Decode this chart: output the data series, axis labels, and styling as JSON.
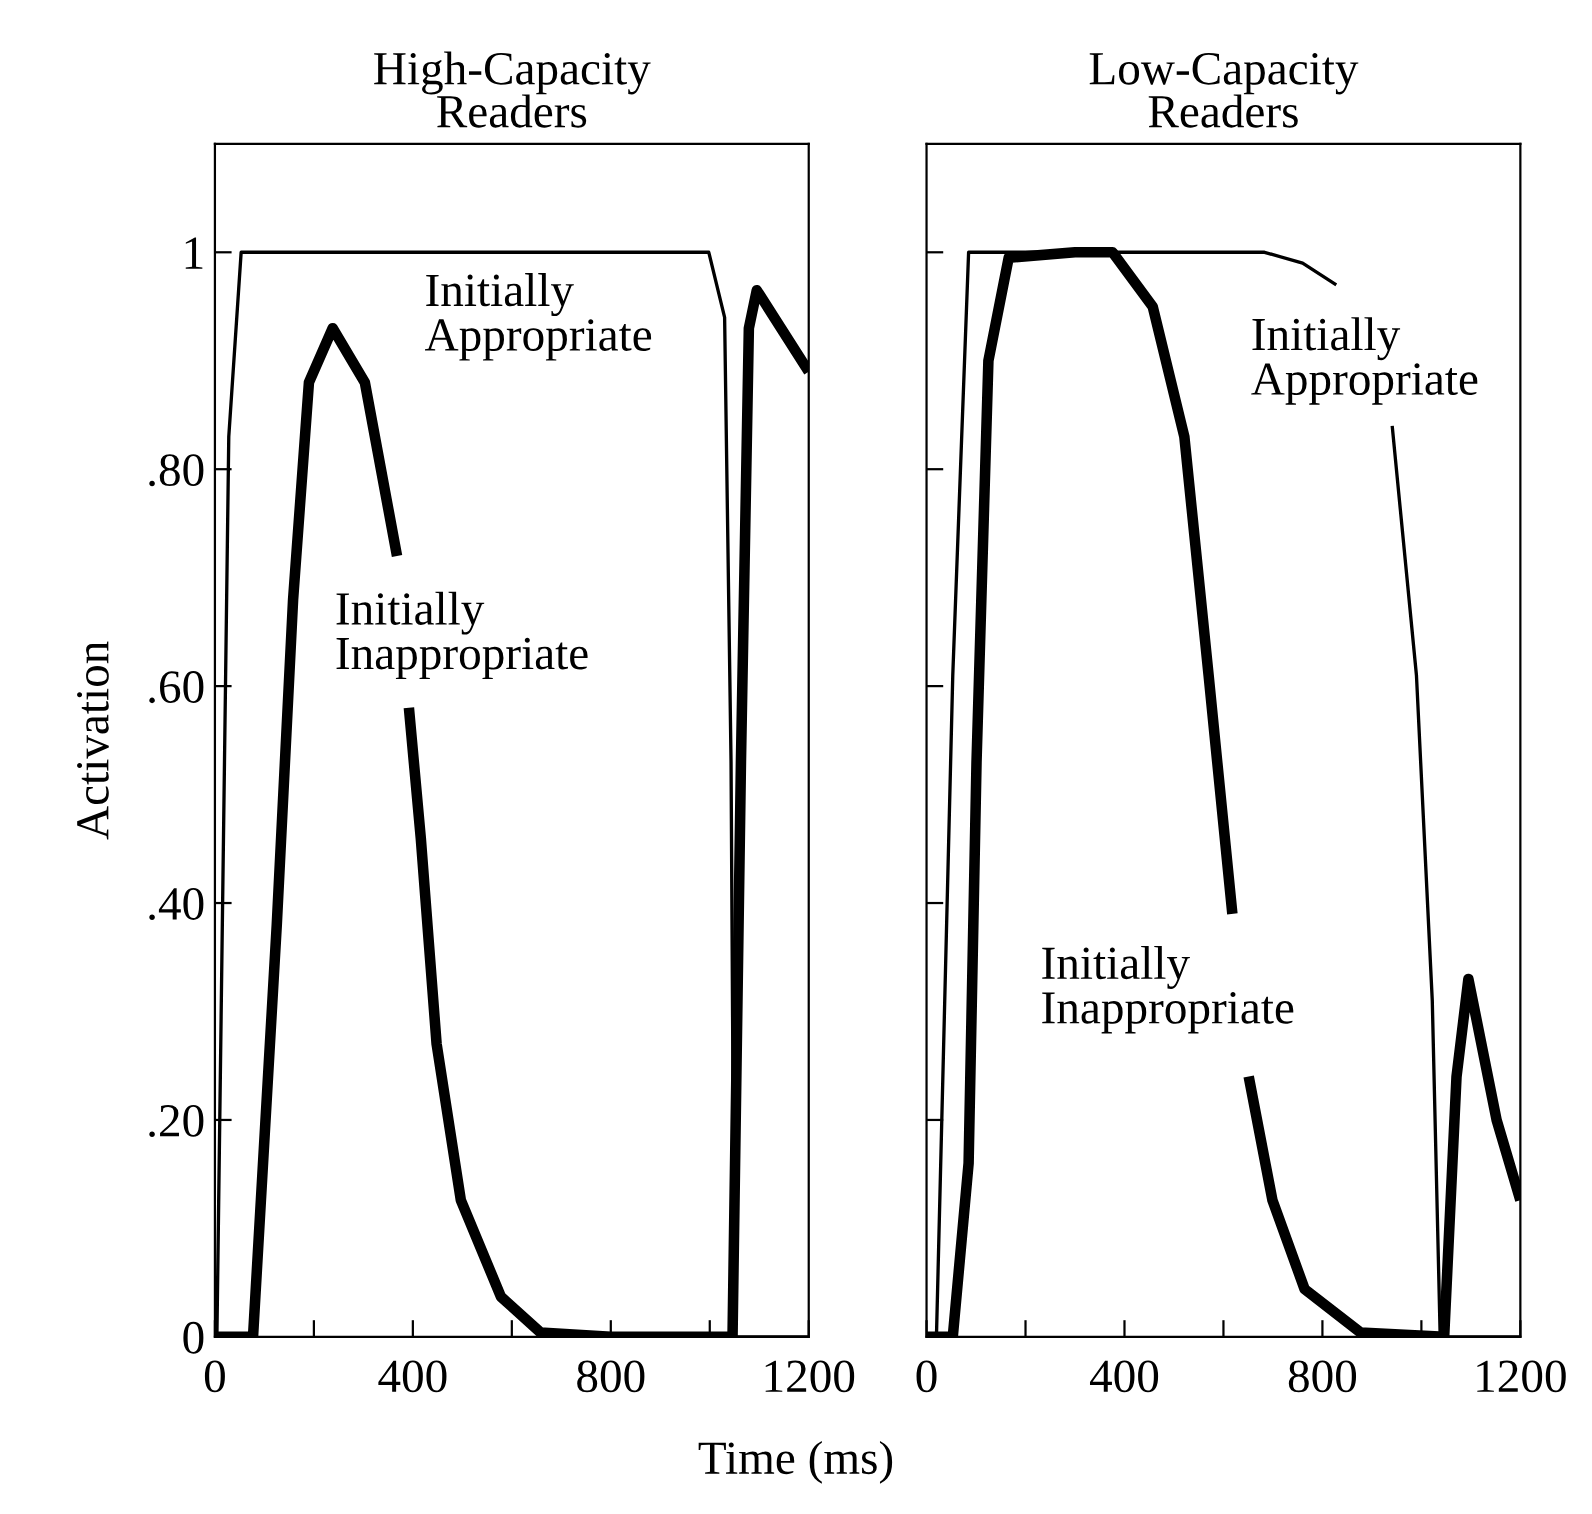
{
  "chart_data": [
    {
      "type": "line",
      "title": "High-Capacity\nReaders",
      "ylabel": "Activation",
      "xlabel": "Time (ms)",
      "xlim": [
        0,
        1200
      ],
      "ylim": [
        0,
        1.1
      ],
      "xticks": [
        0,
        {
          "value": 200,
          "label": null
        },
        400,
        {
          "value": 600,
          "label": null
        },
        800,
        {
          "value": 1000,
          "label": null
        },
        1200
      ],
      "yticks": [
        0,
        {
          "value": 0.2,
          "label": ".20"
        },
        {
          "value": 0.4,
          "label": ".40"
        },
        {
          "value": 0.6,
          "label": ".60"
        },
        {
          "value": 0.8,
          "label": ".80"
        },
        1
      ],
      "series": [
        {
          "name": "Initially\nAppropriate",
          "color": "#000000",
          "x": [
            0,
            4,
            28,
            53,
            200,
            600,
            998,
            1030,
            1043,
            1050,
            1200
          ],
          "values": [
            0,
            0,
            0.83,
            1.0,
            1.0,
            1.0,
            1.0,
            0.94,
            0.53,
            0,
            0
          ]
        },
        {
          "name": "Initially\nInappropriate",
          "color": "#000000",
          "x": [
            0,
            60,
            77,
            125,
            158,
            190,
            238,
            303,
            368,
            380,
            392,
            416,
            448,
            497,
            578,
            658,
            800,
            1046,
            1063,
            1079,
            1095,
            1200
          ],
          "values": [
            0,
            0,
            0.0,
            0.38,
            0.68,
            0.88,
            0.93,
            0.88,
            0.72,
            null,
            0.58,
            0.46,
            0.27,
            0.126,
            0.037,
            0.004,
            0,
            0,
            0.53,
            0.93,
            0.965,
            0.89
          ]
        }
      ]
    },
    {
      "type": "line",
      "title": "Low-Capacity\nReaders",
      "tick_labels": "x",
      "xlim": [
        0,
        1200
      ],
      "ylim": [
        0,
        1.1
      ],
      "xticks": [
        0,
        {
          "value": 200,
          "label": null
        },
        400,
        {
          "value": 600,
          "label": null
        },
        800,
        {
          "value": 1000,
          "label": null
        },
        1200
      ],
      "yticks": [
        {
          "value": 0,
          "label": null
        },
        {
          "value": 0.2,
          "label": null
        },
        {
          "value": 0.4,
          "label": null
        },
        {
          "value": 0.6,
          "label": null
        },
        {
          "value": 0.8,
          "label": null
        },
        {
          "value": 1,
          "label": null
        }
      ],
      "series": [
        {
          "name": "Initially\nAppropriate",
          "color": "#000000",
          "x": [
            0,
            20,
            53,
            85,
            300,
            683,
            760,
            828,
            880,
            941,
            990,
            1022,
            1038,
            1200
          ],
          "values": [
            0,
            0,
            0.61,
            1.0,
            1.0,
            1.0,
            0.99,
            0.97,
            null,
            0.84,
            0.61,
            0.31,
            0,
            0
          ]
        },
        {
          "name": "Initially\nInappropriate",
          "color": "#000000",
          "x": [
            0,
            53,
            85,
            101,
            125,
            166,
            300,
            376,
            457,
            521,
            570,
            618,
            635,
            651,
            699,
            764,
            877,
            1046,
            1071,
            1095,
            1152,
            1200
          ],
          "values": [
            0,
            0,
            0.16,
            0.53,
            0.9,
            0.995,
            1.0,
            1.0,
            0.95,
            0.83,
            0.61,
            0.39,
            null,
            0.24,
            0.126,
            0.044,
            0.004,
            0,
            0.24,
            0.33,
            0.2,
            0.126
          ]
        }
      ]
    }
  ]
}
